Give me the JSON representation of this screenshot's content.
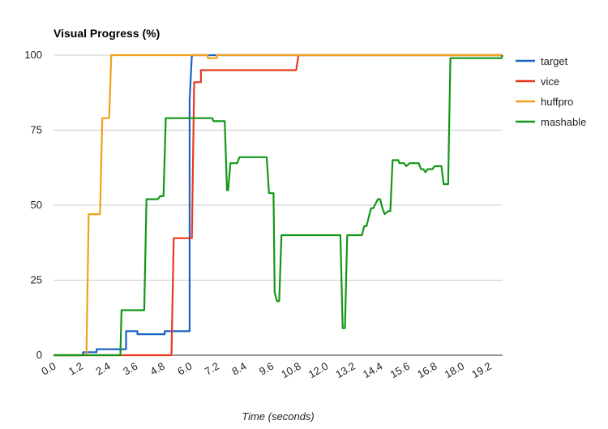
{
  "chart_data": {
    "type": "line",
    "title": "Visual Progress (%)",
    "xlabel": "Time (seconds)",
    "ylabel": "",
    "xlim": [
      0,
      19.8
    ],
    "ylim": [
      0,
      100
    ],
    "x_ticks": [
      "0.0",
      "1.2",
      "2.4",
      "3.6",
      "4.8",
      "6.0",
      "7.2",
      "8.4",
      "9.6",
      "10.8",
      "12.0",
      "13.2",
      "14.4",
      "15.6",
      "16.8",
      "18.0",
      "19.2"
    ],
    "y_ticks": [
      "0",
      "25",
      "50",
      "75",
      "100"
    ],
    "grid": true,
    "legend_position": "right",
    "series": [
      {
        "name": "target",
        "color": "#1a63c6",
        "points": [
          [
            0,
            0
          ],
          [
            1.3,
            0
          ],
          [
            1.3,
            1
          ],
          [
            1.9,
            1
          ],
          [
            1.9,
            2
          ],
          [
            3.2,
            2
          ],
          [
            3.2,
            8
          ],
          [
            3.7,
            8
          ],
          [
            3.7,
            7
          ],
          [
            4.9,
            7
          ],
          [
            4.9,
            8
          ],
          [
            6.0,
            8
          ],
          [
            6.0,
            85
          ],
          [
            6.1,
            100
          ],
          [
            19.8,
            100
          ]
        ]
      },
      {
        "name": "vice",
        "color": "#e8391f",
        "points": [
          [
            0,
            0
          ],
          [
            5.2,
            0
          ],
          [
            5.3,
            39
          ],
          [
            6.1,
            39
          ],
          [
            6.2,
            91
          ],
          [
            6.5,
            91
          ],
          [
            6.5,
            95
          ],
          [
            10.7,
            95
          ],
          [
            10.8,
            100
          ],
          [
            19.8,
            100
          ]
        ]
      },
      {
        "name": "huffpro",
        "color": "#f2a01c",
        "points": [
          [
            0,
            0
          ],
          [
            1.45,
            0
          ],
          [
            1.55,
            47
          ],
          [
            2.05,
            47
          ],
          [
            2.15,
            79
          ],
          [
            2.45,
            79
          ],
          [
            2.55,
            100
          ],
          [
            6.8,
            100
          ],
          [
            6.8,
            99
          ],
          [
            7.2,
            99
          ],
          [
            7.2,
            100
          ],
          [
            19.8,
            100
          ]
        ]
      },
      {
        "name": "mashable",
        "color": "#139719",
        "points": [
          [
            0,
            0
          ],
          [
            2.95,
            0
          ],
          [
            3.0,
            15
          ],
          [
            4.0,
            15
          ],
          [
            4.1,
            52
          ],
          [
            4.6,
            52
          ],
          [
            4.7,
            53
          ],
          [
            4.85,
            53
          ],
          [
            4.95,
            79
          ],
          [
            7.0,
            79
          ],
          [
            7.05,
            78
          ],
          [
            7.55,
            78
          ],
          [
            7.65,
            55
          ],
          [
            7.7,
            55
          ],
          [
            7.8,
            64
          ],
          [
            8.1,
            64
          ],
          [
            8.2,
            66
          ],
          [
            9.4,
            66
          ],
          [
            9.5,
            54
          ],
          [
            9.7,
            54
          ],
          [
            9.75,
            21
          ],
          [
            9.85,
            18
          ],
          [
            9.95,
            18
          ],
          [
            10.05,
            40
          ],
          [
            12.65,
            40
          ],
          [
            12.75,
            9
          ],
          [
            12.85,
            9
          ],
          [
            12.95,
            40
          ],
          [
            13.6,
            40
          ],
          [
            13.7,
            43
          ],
          [
            13.8,
            43
          ],
          [
            14.0,
            49
          ],
          [
            14.1,
            49
          ],
          [
            14.3,
            52
          ],
          [
            14.4,
            52
          ],
          [
            14.5,
            49
          ],
          [
            14.6,
            47
          ],
          [
            14.75,
            48
          ],
          [
            14.85,
            48
          ],
          [
            14.95,
            65
          ],
          [
            15.2,
            65
          ],
          [
            15.25,
            64
          ],
          [
            15.45,
            64
          ],
          [
            15.55,
            63
          ],
          [
            15.7,
            64
          ],
          [
            16.1,
            64
          ],
          [
            16.2,
            62
          ],
          [
            16.3,
            62
          ],
          [
            16.4,
            61
          ],
          [
            16.5,
            62
          ],
          [
            16.7,
            62
          ],
          [
            16.8,
            63
          ],
          [
            17.1,
            63
          ],
          [
            17.2,
            57
          ],
          [
            17.4,
            57
          ],
          [
            17.5,
            99
          ],
          [
            19.75,
            99
          ],
          [
            19.8,
            100
          ]
        ]
      }
    ]
  }
}
